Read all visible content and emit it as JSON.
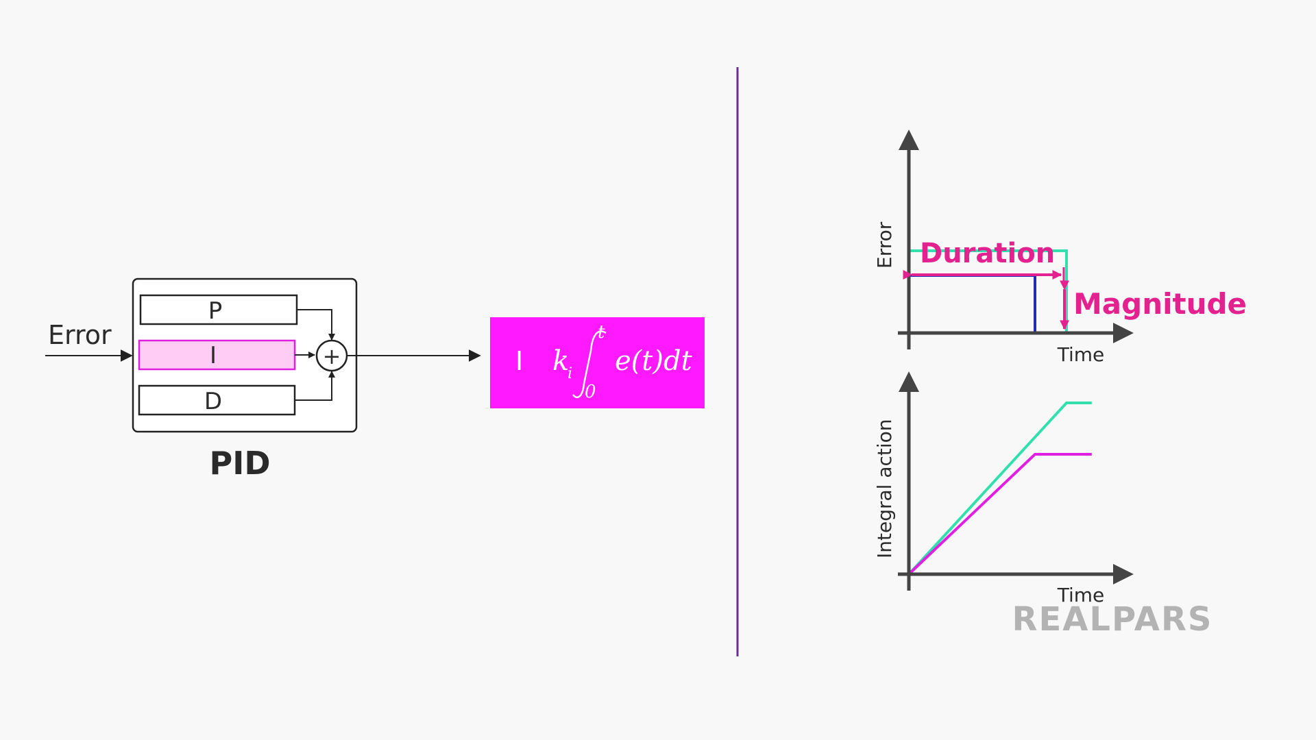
{
  "pid_block": {
    "input_label": "Error",
    "terms": [
      "P",
      "I",
      "D"
    ],
    "sum_symbol": "+",
    "caption": "PID"
  },
  "integral_term": {
    "term_letter": "I",
    "gain": "k",
    "gain_subscript": "i",
    "upper_limit": "t",
    "lower_limit": "0",
    "integrand": "e(t)dt"
  },
  "error_chart": {
    "ylabel": "Error",
    "xlabel": "Time",
    "duration_label": "Duration",
    "magnitude_label": "Magnitude"
  },
  "integral_chart": {
    "ylabel": "Integral action",
    "xlabel": "Time"
  },
  "logo": {
    "text": "REALPARS"
  },
  "colors": {
    "highlight_magenta": "#ff19ff",
    "highlight_pink_fill": "#ffccf5",
    "annotation_pink": "#e3218f",
    "series_teal": "#33e0ad",
    "series_blue": "#1f2fb0",
    "series_magenta": "#e020e0",
    "divider_purple": "#6a2a9a"
  },
  "chart_data": [
    {
      "type": "line",
      "title": "",
      "xlabel": "Time",
      "ylabel": "Error",
      "series": [
        {
          "color": "#33e0ad",
          "x": [
            0,
            0,
            5.0,
            5.0,
            6.0
          ],
          "y": [
            0,
            2.0,
            2.0,
            0,
            0
          ]
        },
        {
          "color": "#1f2fb0",
          "x": [
            0,
            0,
            4.0,
            4.0,
            5.0
          ],
          "y": [
            0,
            1.4,
            1.4,
            0,
            0
          ]
        }
      ]
    },
    {
      "type": "line",
      "title": "",
      "xlabel": "Time",
      "ylabel": "Integral action",
      "series": [
        {
          "color": "#33e0ad",
          "x": [
            0,
            5.0,
            5.8
          ],
          "y": [
            0,
            10.0,
            10.0
          ]
        },
        {
          "color": "#e020e0",
          "x": [
            0,
            4.0,
            5.8
          ],
          "y": [
            0,
            7.0,
            7.0
          ]
        }
      ]
    }
  ]
}
